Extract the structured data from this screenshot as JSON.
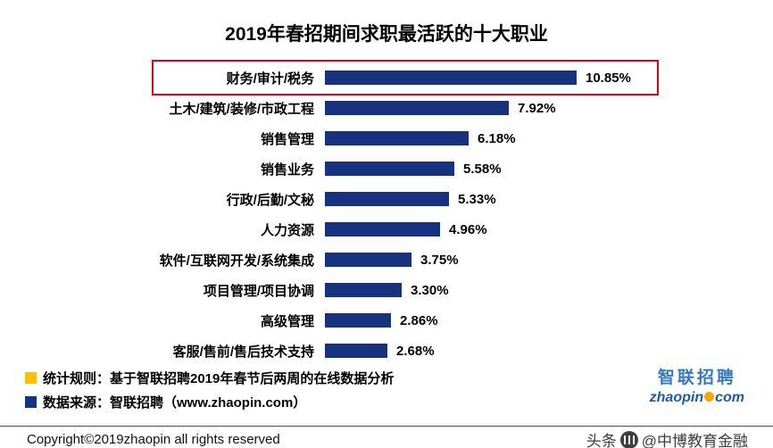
{
  "chart_data": {
    "type": "bar",
    "orientation": "horizontal",
    "title": "2019年春招期间求职最活跃的十大职业",
    "categories": [
      "财务/审计/税务",
      "土木/建筑/装修/市政工程",
      "销售管理",
      "销售业务",
      "行政/后勤/文秘",
      "人力资源",
      "软件/互联网开发/系统集成",
      "项目管理/项目协调",
      "高级管理",
      "客服/售前/售后技术支持"
    ],
    "values": [
      10.85,
      7.92,
      6.18,
      5.58,
      5.33,
      4.96,
      3.75,
      3.3,
      2.86,
      2.68
    ],
    "value_labels": [
      "10.85%",
      "7.92%",
      "6.18%",
      "5.58%",
      "5.33%",
      "4.96%",
      "3.75%",
      "3.30%",
      "2.86%",
      "2.68%"
    ],
    "highlighted_category": "财务/审计/税务",
    "bar_color": "#17337F",
    "highlight_box_color": "#E60012",
    "xlim": [
      0,
      11
    ],
    "grid": false,
    "legend_position": "bottom-left"
  },
  "legend": {
    "stat_rule": "统计规则：基于智联招聘2019年春节后两周的在线数据分析",
    "stat_rule_color": "#FFC000",
    "data_source": "数据来源：智联招聘（www.zhaopin.com）",
    "data_source_color": "#17337F"
  },
  "logo": {
    "cn": "智联招聘",
    "en_left": "zhaopin",
    "en_right": "com"
  },
  "footer": {
    "copyright": "Copyright©2019zhaopin all rights reserved",
    "watermark_prefix": "头条",
    "watermark_suffix": "@中博教育金融"
  }
}
